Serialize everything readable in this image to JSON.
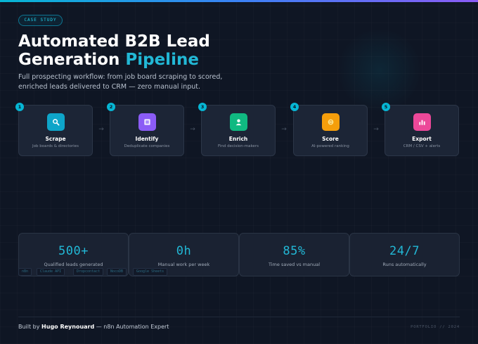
{
  "badge": "CASE STUDY",
  "title": {
    "line1": "Automated B2B Lead",
    "line2_part1": "Generation ",
    "line2_accent": "Pipeline"
  },
  "subtitle": "Full prospecting workflow: from job board scraping to scored, enriched leads delivered to CRM — zero manual input.",
  "pipeline": {
    "steps": [
      {
        "number": "1",
        "title": "Scrape",
        "desc": "Job boards & directories",
        "icon": "search-icon",
        "color": "#0ea5c9"
      },
      {
        "number": "2",
        "title": "Identify",
        "desc": "Deduplicate companies",
        "icon": "square-icon",
        "color": "#8b5cf6"
      },
      {
        "number": "3",
        "title": "Enrich",
        "desc": "Find decision-makers",
        "icon": "user-icon",
        "color": "#10b981"
      },
      {
        "number": "4",
        "title": "Score",
        "desc": "AI-powered ranking",
        "icon": "brain-icon",
        "color": "#f59e0b"
      },
      {
        "number": "5",
        "title": "Export",
        "desc": "CRM / CSV + alerts",
        "icon": "chart-icon",
        "color": "#ec4899"
      }
    ],
    "arrow": "→"
  },
  "stats": [
    {
      "value": "500+",
      "label": "Qualified leads generated"
    },
    {
      "value": "0h",
      "label": "Manual work per week"
    },
    {
      "value": "85%",
      "label": "Time saved vs manual"
    },
    {
      "value": "24/7",
      "label": "Runs automatically"
    }
  ],
  "tags": [
    "n8n",
    "Claude API",
    "Dropcontact",
    "NocoDB",
    "Google Sheets"
  ],
  "footer": {
    "prefix": "Built by ",
    "name": "Hugo Reynouard",
    "suffix": " — n8n Automation Expert",
    "right": "PORTFOLIO // 2024"
  },
  "colors": {
    "accent": "#22b8d6",
    "background": "#0f1624"
  }
}
